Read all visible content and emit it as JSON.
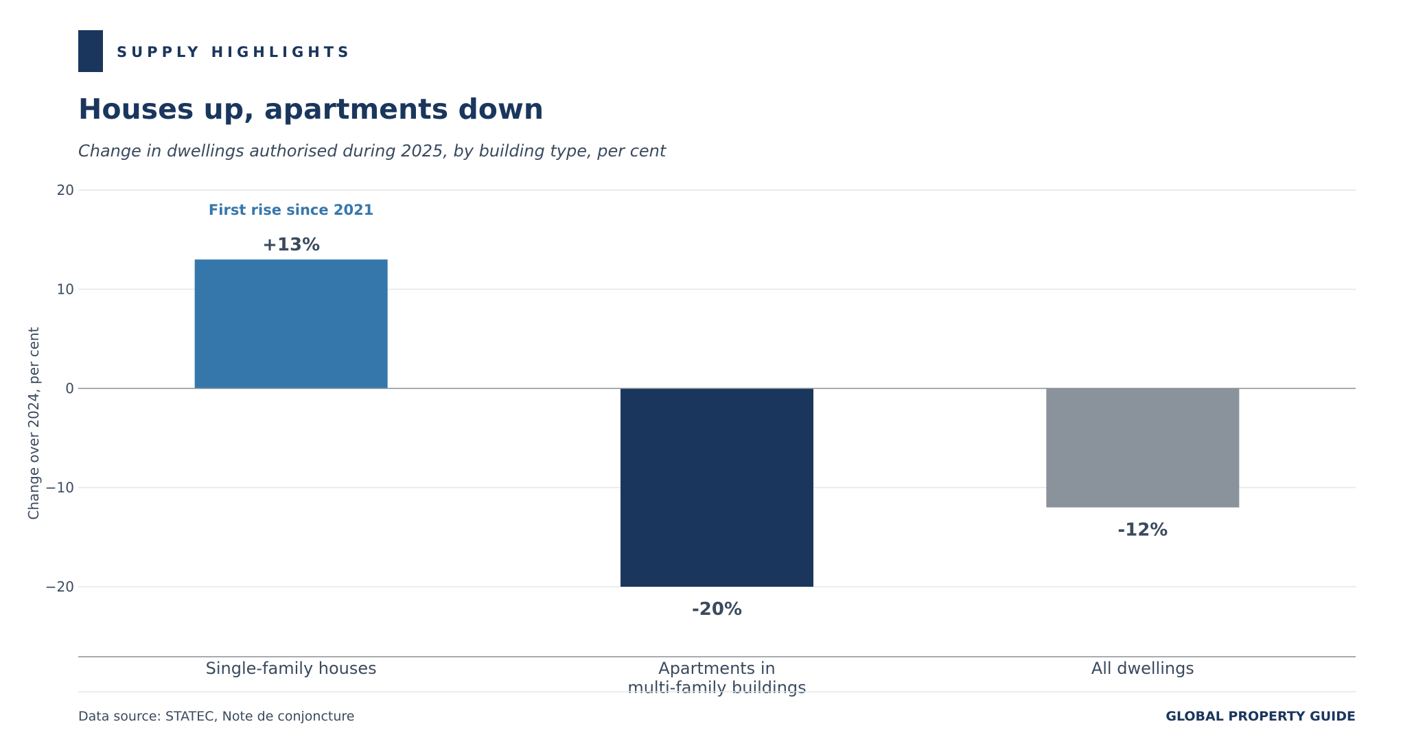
{
  "header": {
    "kicker": "SUPPLY HIGHLIGHTS",
    "title": "Houses up, apartments down",
    "subtitle": "Change in dwellings authorised during 2025, by building type, per cent"
  },
  "colors": {
    "navy": "#1a365d",
    "blue": "#3677ab",
    "gray": "#8a929b",
    "text": "#3a4a5e",
    "grid": "#e3e6ea",
    "axis": "#8a8f96"
  },
  "chart_data": {
    "type": "bar",
    "title": "Houses up, apartments down",
    "subtitle": "Change in dwellings authorised during 2025, by building type, per cent",
    "categories": [
      "Single-family houses",
      "Apartments in\nmulti-family buildings",
      "All dwellings"
    ],
    "values": [
      13,
      -20,
      -12
    ],
    "value_labels": [
      "+13%",
      "-20%",
      "-12%"
    ],
    "bar_colors": [
      "#3677ab",
      "#1a365d",
      "#8a929b"
    ],
    "ylabel": "Change over 2024, per cent",
    "xlabel": "",
    "ylim": [
      -27,
      20
    ],
    "yticks": [
      20,
      10,
      0,
      -10,
      -20
    ],
    "ytick_labels": [
      "20",
      "10",
      "0",
      "−10",
      "−20"
    ],
    "grid": true,
    "annotations": [
      {
        "category_index": 0,
        "text": "First rise since 2021"
      }
    ]
  },
  "footer": {
    "source": "Data source: STATEC, Note de conjoncture",
    "brand": "GLOBAL PROPERTY GUIDE"
  }
}
